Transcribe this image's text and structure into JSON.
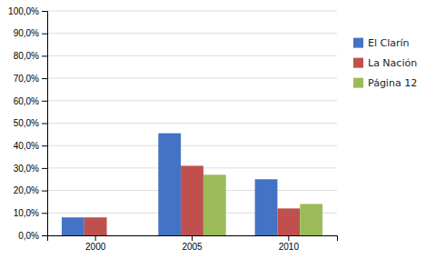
{
  "chart_data": {
    "type": "bar",
    "categories": [
      "2000",
      "2005",
      "2010"
    ],
    "series": [
      {
        "name": "El Clarín",
        "color": "#4472C4",
        "values": [
          0.08,
          0.455,
          0.25
        ]
      },
      {
        "name": "La Nación",
        "color": "#C0504D",
        "values": [
          0.08,
          0.31,
          0.12
        ]
      },
      {
        "name": "Página 12",
        "color": "#9BBB59",
        "values": [
          0.0,
          0.27,
          0.14
        ]
      }
    ],
    "ylim": [
      0,
      1.0
    ],
    "yticks": [
      {
        "value": 0.0,
        "label": "0,0%"
      },
      {
        "value": 0.1,
        "label": "10,0%"
      },
      {
        "value": 0.2,
        "label": "20,0%"
      },
      {
        "value": 0.3,
        "label": "30,0%"
      },
      {
        "value": 0.4,
        "label": "40,0%"
      },
      {
        "value": 0.5,
        "label": "50,0%"
      },
      {
        "value": 0.6,
        "label": "60,0%"
      },
      {
        "value": 0.7,
        "label": "70,0%"
      },
      {
        "value": 0.8,
        "label": "80,0%"
      },
      {
        "value": 0.9,
        "label": "90,0%"
      },
      {
        "value": 1.0,
        "label": "100,0%"
      }
    ],
    "grid": true,
    "legend": "right"
  }
}
